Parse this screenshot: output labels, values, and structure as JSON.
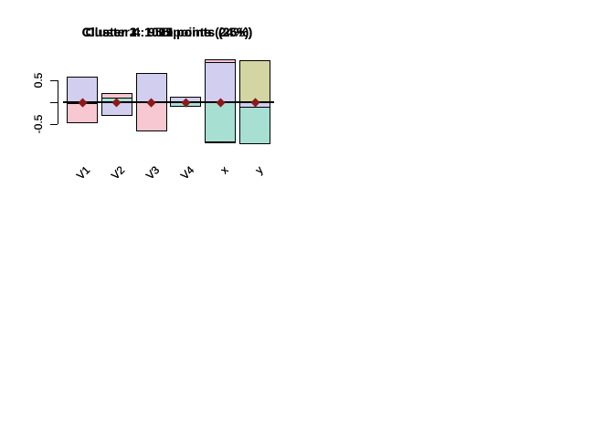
{
  "chart_data": {
    "type": "bar",
    "layout": {
      "rows": 2,
      "cols": 2,
      "grid": false,
      "legend": "none",
      "background": "#ffffff"
    },
    "categories": [
      "V1",
      "V2",
      "V3",
      "V4",
      "x",
      "y"
    ],
    "ylim": [
      -1,
      1.05
    ],
    "y_tick_values": [
      0.5,
      -0.5
    ],
    "y_tick_labels": [
      "0.5",
      "-0.5"
    ],
    "y_tick_marks": [
      0.5,
      0,
      -0.5
    ],
    "marker": {
      "shape": "diamond",
      "color": "#8b1a1a",
      "value": 0
    },
    "bar_border_color": "#000000",
    "panels": [
      {
        "title": "Cluster 1: 1021 points (26%)",
        "points": 1021,
        "percent": 26,
        "bar_color": "#f8c8d2",
        "values": [
          -0.48,
          0.21,
          -0.67,
          -0.1,
          0.97,
          0.08
        ]
      },
      {
        "title": "Cluster 2: 1019 points (25%)",
        "points": 1019,
        "percent": 25,
        "bar_color": "#d3d6a2",
        "values": [
          -0.05,
          0,
          0.06,
          0,
          -0.92,
          0.95
        ]
      },
      {
        "title": "Cluster 3: 1005 points (25%)",
        "points": 1005,
        "percent": 25,
        "bar_color": "#a7e0d2",
        "values": [
          0,
          0.1,
          0,
          -0.1,
          -0.9,
          -0.94
        ]
      },
      {
        "title": "Cluster 4: 955 points (24%)",
        "points": 955,
        "percent": 24,
        "bar_color": "#d1ceef",
        "values": [
          0.57,
          -0.3,
          0.65,
          0.13,
          0.9,
          -0.12
        ]
      }
    ]
  }
}
